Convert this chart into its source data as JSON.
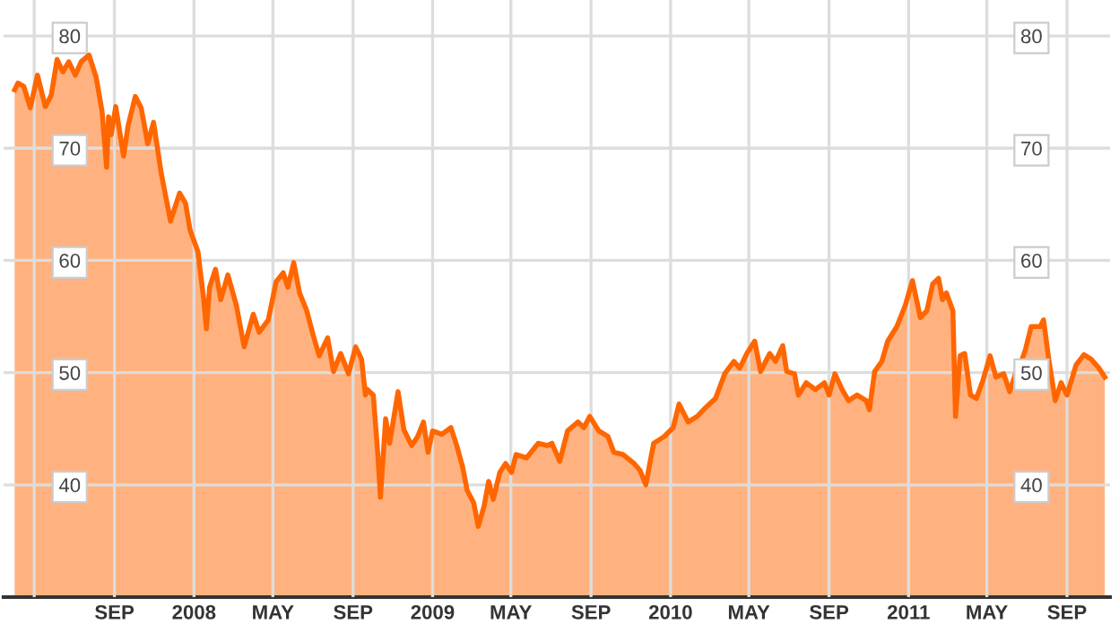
{
  "chart_data": {
    "type": "area",
    "x": [
      "2007-04-01",
      "2007-04-06",
      "2007-04-15",
      "2007-04-25",
      "2007-05-06",
      "2007-05-18",
      "2007-05-27",
      "2007-06-05",
      "2007-06-14",
      "2007-06-23",
      "2007-07-03",
      "2007-07-12",
      "2007-07-24",
      "2007-08-04",
      "2007-08-13",
      "2007-08-20",
      "2007-08-23",
      "2007-08-27",
      "2007-09-03",
      "2007-09-15",
      "2007-09-22",
      "2007-10-03",
      "2007-10-12",
      "2007-10-22",
      "2007-10-31",
      "2007-11-12",
      "2007-11-26",
      "2007-12-10",
      "2007-12-19",
      "2007-12-26",
      "2008-01-07",
      "2008-01-16",
      "2008-01-20",
      "2008-01-25",
      "2008-02-03",
      "2008-02-11",
      "2008-02-22",
      "2008-03-06",
      "2008-03-18",
      "2008-04-01",
      "2008-04-10",
      "2008-04-24",
      "2008-05-06",
      "2008-05-17",
      "2008-05-24",
      "2008-06-02",
      "2008-06-11",
      "2008-06-22",
      "2008-07-02",
      "2008-07-11",
      "2008-07-24",
      "2008-08-02",
      "2008-08-13",
      "2008-08-25",
      "2008-09-05",
      "2008-09-14",
      "2008-09-20",
      "2008-09-23",
      "2008-10-02",
      "2008-10-09",
      "2008-10-13",
      "2008-10-21",
      "2008-10-27",
      "2008-11-09",
      "2008-11-18",
      "2008-11-30",
      "2008-12-09",
      "2008-12-18",
      "2008-12-25",
      "2009-01-01",
      "2009-01-15",
      "2009-01-29",
      "2009-02-07",
      "2009-02-16",
      "2009-02-23",
      "2009-03-05",
      "2009-03-12",
      "2009-03-21",
      "2009-03-28",
      "2009-04-04",
      "2009-04-14",
      "2009-04-23",
      "2009-05-02",
      "2009-05-09",
      "2009-05-25",
      "2009-06-12",
      "2009-06-26",
      "2009-07-03",
      "2009-07-15",
      "2009-07-27",
      "2009-08-12",
      "2009-08-21",
      "2009-08-30",
      "2009-09-13",
      "2009-09-27",
      "2009-10-06",
      "2009-10-20",
      "2009-11-06",
      "2009-11-15",
      "2009-11-24",
      "2009-12-06",
      "2009-12-22",
      "2010-01-05",
      "2010-01-14",
      "2010-01-28",
      "2010-02-11",
      "2010-02-24",
      "2010-03-11",
      "2010-03-25",
      "2010-04-08",
      "2010-04-17",
      "2010-04-28",
      "2010-05-10",
      "2010-05-19",
      "2010-06-02",
      "2010-06-11",
      "2010-06-22",
      "2010-06-28",
      "2010-07-10",
      "2010-07-16",
      "2010-07-28",
      "2010-08-11",
      "2010-08-25",
      "2010-09-01",
      "2010-09-10",
      "2010-09-21",
      "2010-10-01",
      "2010-10-14",
      "2010-10-28",
      "2010-11-02",
      "2010-11-10",
      "2010-11-21",
      "2010-11-30",
      "2010-12-14",
      "2010-12-27",
      "2011-01-07",
      "2011-01-19",
      "2011-01-29",
      "2011-02-07",
      "2011-02-16",
      "2011-02-22",
      "2011-02-28",
      "2011-03-10",
      "2011-03-14",
      "2011-03-21",
      "2011-03-28",
      "2011-04-06",
      "2011-04-15",
      "2011-04-25",
      "2011-05-06",
      "2011-05-15",
      "2011-05-27",
      "2011-06-05",
      "2011-06-14",
      "2011-06-23",
      "2011-06-29",
      "2011-07-08",
      "2011-07-22",
      "2011-07-27",
      "2011-08-04",
      "2011-08-14",
      "2011-08-23",
      "2011-09-01",
      "2011-09-15",
      "2011-09-27",
      "2011-10-08",
      "2011-10-20",
      "2011-10-29"
    ],
    "series": [
      {
        "color": "#ff6600",
        "values": [
          75.2,
          75.8,
          75.5,
          73.6,
          76.5,
          73.7,
          74.7,
          77.9,
          76.8,
          77.7,
          76.5,
          77.7,
          78.3,
          76.3,
          73.3,
          68.3,
          72.8,
          71.2,
          73.7,
          69.3,
          72.0,
          74.6,
          73.6,
          70.4,
          72.3,
          67.7,
          63.5,
          66.0,
          65.1,
          62.7,
          60.8,
          56.5,
          53.9,
          57.6,
          59.2,
          56.5,
          58.7,
          56.0,
          52.3,
          55.2,
          53.6,
          54.7,
          58.1,
          58.9,
          57.6,
          59.8,
          57.1,
          55.5,
          53.3,
          51.5,
          53.1,
          50.1,
          51.7,
          49.9,
          52.3,
          51.2,
          48.0,
          48.5,
          48.0,
          42.7,
          38.9,
          45.9,
          43.7,
          48.3,
          44.9,
          43.5,
          44.3,
          45.6,
          42.9,
          44.8,
          44.5,
          45.1,
          43.5,
          41.6,
          39.5,
          38.4,
          36.3,
          38.1,
          40.3,
          38.7,
          41.1,
          41.9,
          41.1,
          42.7,
          42.4,
          43.7,
          43.5,
          43.7,
          42.1,
          44.8,
          45.6,
          45.1,
          46.1,
          44.8,
          44.3,
          42.9,
          42.7,
          41.9,
          41.3,
          40.0,
          43.7,
          44.3,
          45.1,
          47.2,
          45.6,
          46.1,
          46.9,
          47.7,
          49.9,
          51.0,
          50.4,
          51.7,
          52.8,
          50.1,
          51.7,
          51.0,
          52.4,
          50.1,
          49.9,
          48.0,
          49.1,
          48.5,
          49.1,
          48.0,
          49.9,
          48.5,
          47.5,
          48.0,
          47.5,
          46.7,
          50.1,
          51.0,
          52.8,
          54.1,
          56.0,
          58.2,
          54.9,
          55.5,
          57.9,
          58.4,
          56.5,
          57.1,
          55.5,
          46.1,
          51.5,
          51.7,
          48.0,
          47.7,
          49.3,
          51.5,
          49.6,
          49.9,
          48.3,
          49.9,
          51.0,
          52.0,
          54.1,
          54.1,
          54.7,
          51.2,
          47.5,
          49.1,
          48.0,
          50.7,
          51.6,
          51.2,
          50.4,
          49.6
        ]
      }
    ],
    "xlim": [
      "2007-03-15",
      "2011-11-06"
    ],
    "xticks": [
      {
        "value": "2007-05-01",
        "label": null
      },
      {
        "value": "2007-09-01",
        "label": "SEP"
      },
      {
        "value": "2008-01-01",
        "label": "2008"
      },
      {
        "value": "2008-05-01",
        "label": "MAY"
      },
      {
        "value": "2008-09-01",
        "label": "SEP"
      },
      {
        "value": "2009-01-01",
        "label": "2009"
      },
      {
        "value": "2009-05-01",
        "label": "MAY"
      },
      {
        "value": "2009-09-01",
        "label": "SEP"
      },
      {
        "value": "2010-01-01",
        "label": "2010"
      },
      {
        "value": "2010-05-01",
        "label": "MAY"
      },
      {
        "value": "2010-09-01",
        "label": "SEP"
      },
      {
        "value": "2011-01-01",
        "label": "2011"
      },
      {
        "value": "2011-05-01",
        "label": "MAY"
      },
      {
        "value": "2011-09-01",
        "label": "SEP"
      }
    ],
    "ylim": [
      30,
      83.2
    ],
    "yticks": [
      40,
      50,
      60,
      70,
      80
    ],
    "y2lim": [
      30,
      83.2
    ],
    "y2ticks": [
      40,
      50,
      60,
      70,
      80
    ],
    "grid": true,
    "line_style": "solid",
    "marker": "none"
  }
}
